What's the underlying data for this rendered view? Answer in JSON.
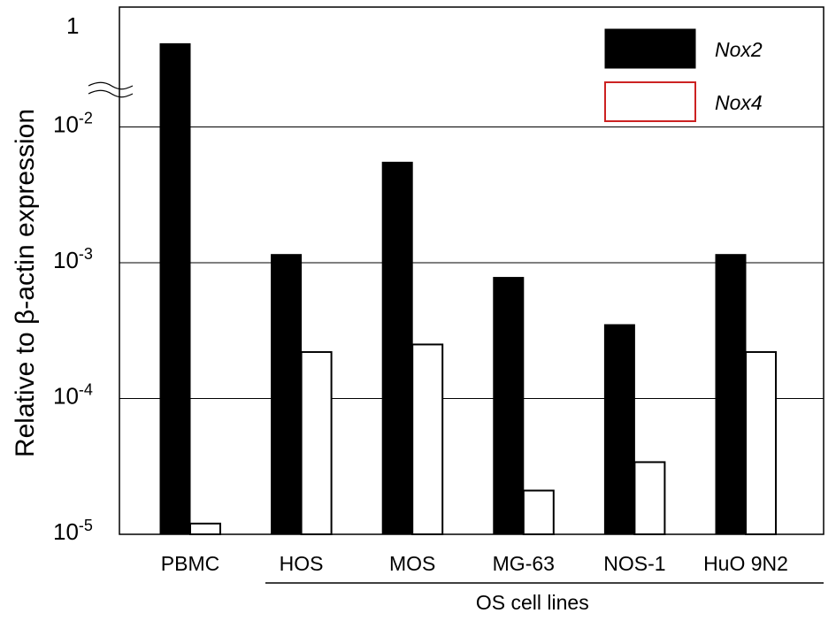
{
  "chart_data": {
    "type": "bar",
    "scale": "log",
    "ylabel": "Relative to β-actin expression",
    "categories": [
      "PBMC",
      "HOS",
      "MOS",
      "MG-63",
      "NOS-1",
      "HuO 9N2"
    ],
    "group_label": "OS cell lines",
    "group_members": [
      "HOS",
      "MOS",
      "MG-63",
      "NOS-1",
      "HuO 9N2"
    ],
    "series": [
      {
        "name": "Nox2",
        "color": "#000000",
        "values": [
          0.4,
          0.00115,
          0.0055,
          0.00078,
          0.00035,
          0.00115
        ]
      },
      {
        "name": "Nox4",
        "color": "#cc2222",
        "values": [
          1.2e-05,
          0.00022,
          0.00025,
          2.1e-05,
          3.4e-05,
          0.00022
        ]
      }
    ],
    "yticks": [
      {
        "value": 1e-05,
        "base": "10",
        "exp": "-5"
      },
      {
        "value": 0.0001,
        "base": "10",
        "exp": "-4"
      },
      {
        "value": 0.001,
        "base": "10",
        "exp": "-3"
      },
      {
        "value": 0.01,
        "base": "10",
        "exp": "-2"
      },
      {
        "value": 1,
        "base": "1",
        "exp": ""
      }
    ],
    "ylim": [
      1e-05,
      1
    ],
    "axis_break": true,
    "grid": true,
    "legend_position": "top-right"
  }
}
